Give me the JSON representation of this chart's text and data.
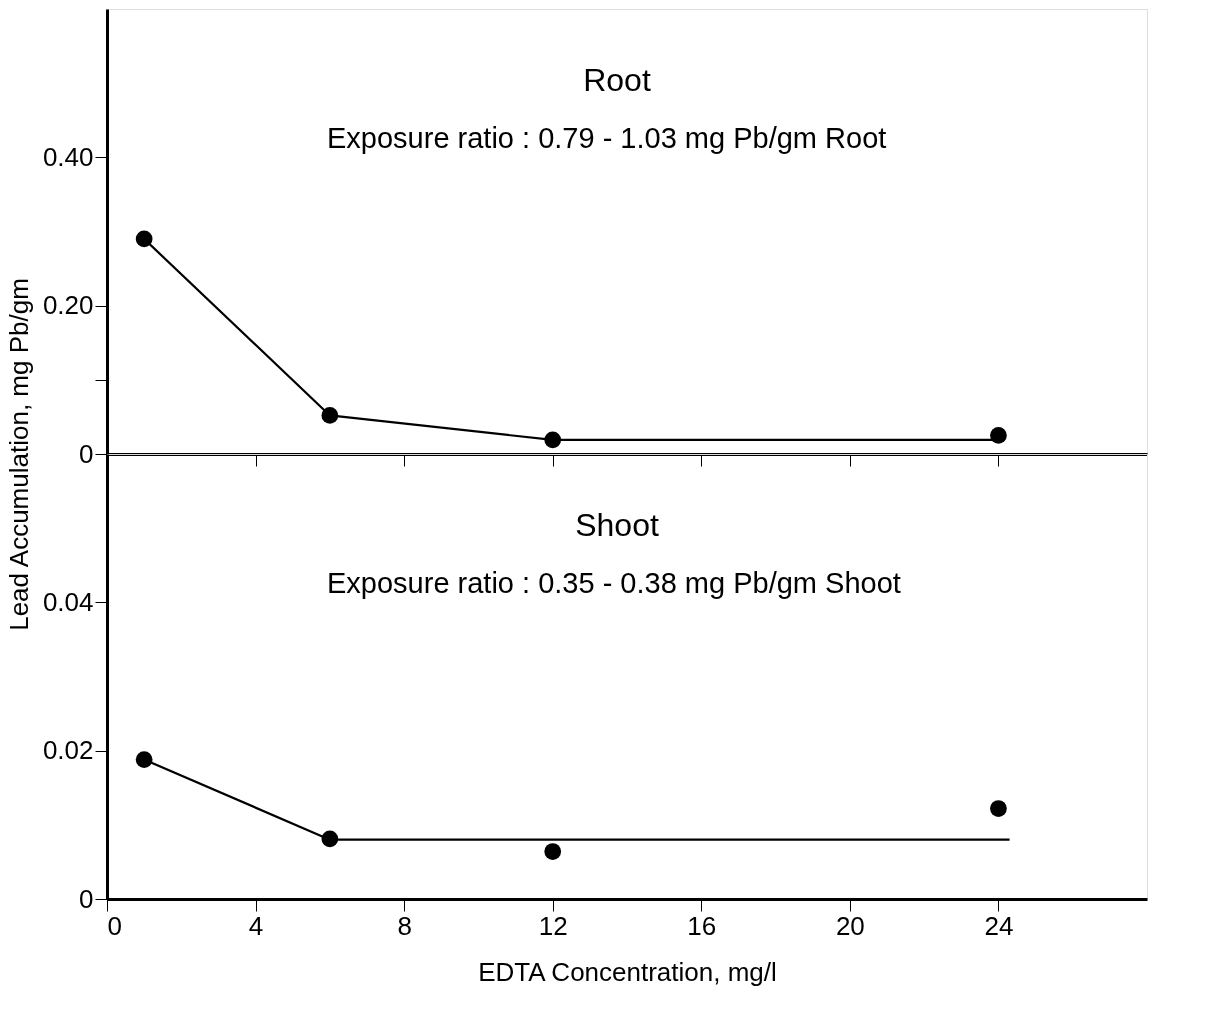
{
  "chart_data": [
    {
      "type": "line",
      "ylabel": "Lead Accumulation, mg Pb/gm",
      "annotations": [
        "Root",
        "Exposure ratio : 0.79 - 1.03 mg Pb/gm Root"
      ],
      "xlim": [
        0,
        28
      ],
      "xticks": [
        {
          "value": 4,
          "label": null
        },
        {
          "value": 8,
          "label": null
        },
        {
          "value": 12,
          "label": null
        },
        {
          "value": 16,
          "label": null
        },
        {
          "value": 20,
          "label": null
        },
        {
          "value": 24,
          "label": null
        }
      ],
      "ylim": [
        0,
        0.6
      ],
      "yticks": [
        0,
        {
          "value": 0.1,
          "label": null
        },
        {
          "value": 0.2,
          "label": "0.20"
        },
        {
          "value": 0.4,
          "label": "0.40"
        }
      ],
      "tick_labels": "y",
      "grid": false,
      "marker": "circle",
      "series": [
        {
          "color": "#000000",
          "marker": "none",
          "x": [
            1,
            6,
            12,
            24
          ],
          "values": [
            0.29,
            0.052,
            0.019,
            0.019
          ]
        },
        {
          "type": "scatter",
          "color": "#000000",
          "x": [
            1,
            6,
            12,
            24
          ],
          "values": [
            0.29,
            0.052,
            0.019,
            0.025
          ]
        }
      ]
    },
    {
      "type": "line",
      "xlabel": "EDTA Concentration, mg/l",
      "annotations": [
        "Shoot",
        "Exposure ratio : 0.35 - 0.38 mg Pb/gm Shoot"
      ],
      "xlim": [
        0,
        28
      ],
      "xticks": [
        0,
        4,
        8,
        12,
        16,
        20,
        24
      ],
      "ylim": [
        0,
        0.06
      ],
      "yticks": [
        0,
        {
          "value": 0.02,
          "label": "0.02"
        },
        {
          "value": 0.04,
          "label": "0.04"
        }
      ],
      "grid": false,
      "marker": "circle",
      "series": [
        {
          "color": "#000000",
          "marker": "none",
          "x": [
            1,
            6,
            24.3
          ],
          "values": [
            0.0188,
            0.008,
            0.008
          ]
        },
        {
          "type": "scatter",
          "color": "#000000",
          "x": [
            1,
            6,
            12,
            24
          ],
          "values": [
            0.0188,
            0.0081,
            0.0064,
            0.0122
          ]
        }
      ]
    }
  ]
}
